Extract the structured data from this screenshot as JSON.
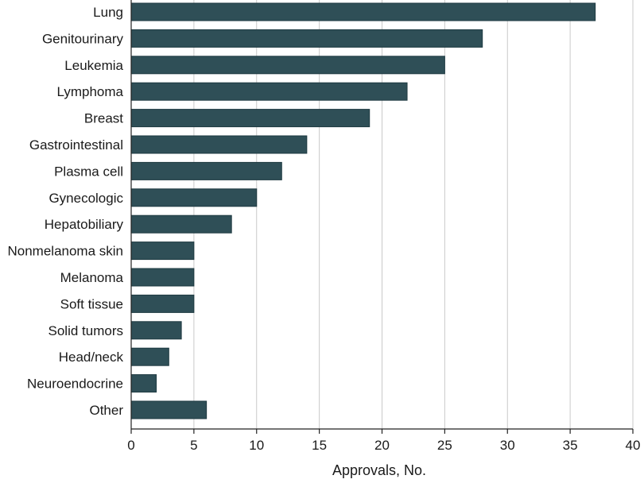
{
  "chart_data": {
    "type": "bar",
    "orientation": "horizontal",
    "categories": [
      "Lung",
      "Genitourinary",
      "Leukemia",
      "Lymphoma",
      "Breast",
      "Gastrointestinal",
      "Plasma cell",
      "Gynecologic",
      "Hepatobiliary",
      "Nonmelanoma skin",
      "Melanoma",
      "Soft tissue",
      "Solid tumors",
      "Head/neck",
      "Neuroendocrine",
      "Other"
    ],
    "values": [
      37,
      28,
      25,
      22,
      19,
      14,
      12,
      10,
      8,
      5,
      5,
      5,
      4,
      3,
      2,
      6
    ],
    "xlabel": "Approvals, No.",
    "ylabel": "",
    "xlim": [
      0,
      40
    ],
    "xticks": [
      0,
      5,
      10,
      15,
      20,
      25,
      30,
      35,
      40
    ],
    "grid": "vertical",
    "bar_color": "#2f4f57",
    "grid_color": "#c9c9c9"
  }
}
